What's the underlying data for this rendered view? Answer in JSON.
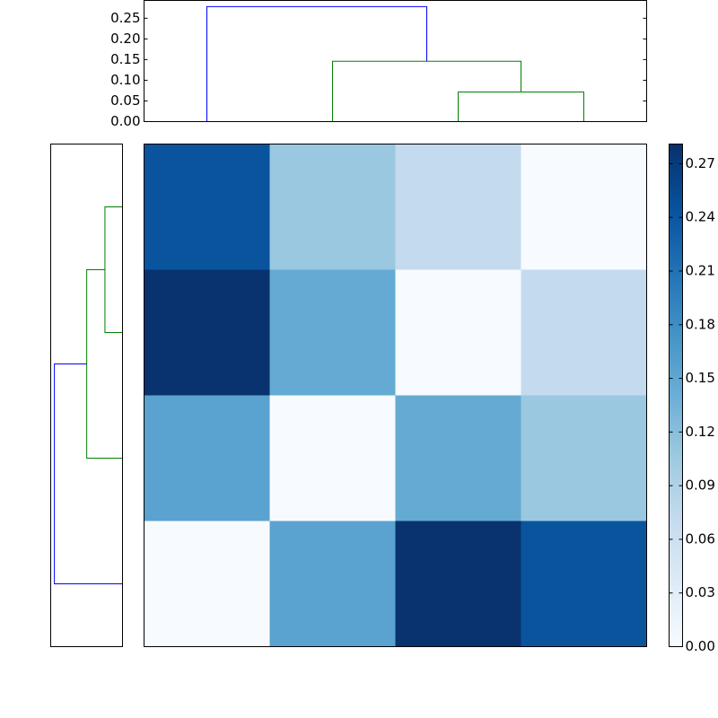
{
  "chart_data": [
    {
      "type": "dendrogram",
      "orientation": "top",
      "xlim": [
        0,
        40
      ],
      "ylim": [
        0,
        0.293
      ],
      "yticks": [
        {
          "value": 0,
          "label": "0.00"
        },
        {
          "value": 0.05,
          "label": "0.05"
        },
        {
          "value": 0.1,
          "label": "0.10"
        },
        {
          "value": 0.15,
          "label": "0.15"
        },
        {
          "value": 0.2,
          "label": "0.20"
        },
        {
          "value": 0.25,
          "label": "0.25"
        }
      ],
      "links": [
        {
          "color": "#008000",
          "x": [
            25,
            25,
            35,
            35
          ],
          "y": [
            0,
            0.0717,
            0.0717,
            0
          ]
        },
        {
          "color": "#008000",
          "x": [
            15,
            15,
            30,
            30
          ],
          "y": [
            0,
            0.146,
            0.146,
            0.0717
          ]
        },
        {
          "color": "#0000ff",
          "x": [
            5,
            5,
            22.5,
            22.5
          ],
          "y": [
            0,
            0.278,
            0.278,
            0.146
          ]
        }
      ]
    },
    {
      "type": "dendrogram",
      "orientation": "left",
      "xlim": [
        0.293,
        0
      ],
      "ylim": [
        0,
        40
      ],
      "links": [
        {
          "color": "#008000",
          "x": [
            0,
            0.0717,
            0.0717,
            0
          ],
          "y": [
            25,
            25,
            35,
            35
          ]
        },
        {
          "color": "#008000",
          "x": [
            0,
            0.146,
            0.146,
            0.0717
          ],
          "y": [
            15,
            15,
            30,
            30
          ]
        },
        {
          "color": "#0000ff",
          "x": [
            0,
            0.278,
            0.278,
            0.146
          ],
          "y": [
            5,
            5,
            22.5,
            22.5
          ]
        }
      ]
    },
    {
      "type": "heatmap",
      "z": [
        [
          0.243,
          0.108,
          0.072,
          0
        ],
        [
          0.278,
          0.146,
          0,
          0.072
        ],
        [
          0.155,
          0,
          0.146,
          0.108
        ],
        [
          0,
          0.155,
          0.278,
          0.243
        ]
      ],
      "colormap": [
        "#f7fbff",
        "#deebf7",
        "#c6dbef",
        "#9ecae1",
        "#6baed6",
        "#4292c6",
        "#2171b5",
        "#08519c",
        "#08306b"
      ],
      "clim": [
        0,
        0.281
      ],
      "cticks": [
        {
          "value": 0,
          "label": "0.00"
        },
        {
          "value": 0.03,
          "label": "0.03"
        },
        {
          "value": 0.06,
          "label": "0.06"
        },
        {
          "value": 0.09,
          "label": "0.09"
        },
        {
          "value": 0.12,
          "label": "0.12"
        },
        {
          "value": 0.15,
          "label": "0.15"
        },
        {
          "value": 0.18,
          "label": "0.18"
        },
        {
          "value": 0.21,
          "label": "0.21"
        },
        {
          "value": 0.24,
          "label": "0.24"
        },
        {
          "value": 0.27,
          "label": "0.27"
        }
      ]
    }
  ]
}
